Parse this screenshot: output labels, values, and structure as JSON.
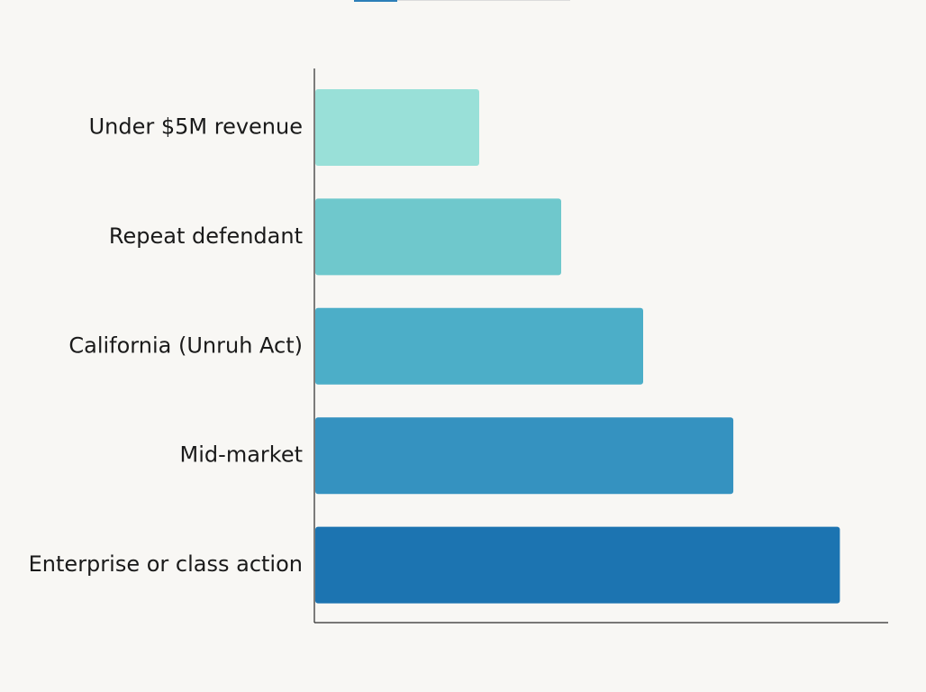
{
  "chart_data": {
    "type": "bar",
    "orientation": "horizontal",
    "title": "",
    "xlabel": "",
    "ylabel": "",
    "categories": [
      "Under $5M revenue",
      "Repeat defendant",
      "California (Unruh Act)",
      "Mid-market",
      "Enterprise or class action"
    ],
    "values": [
      20,
      30,
      40,
      51,
      64
    ],
    "xlim": [
      0,
      70
    ],
    "grid": false,
    "legend": "none",
    "colors": [
      "#99e0d8",
      "#6fc8cc",
      "#4caec8",
      "#3592c0",
      "#1c74b1"
    ]
  }
}
